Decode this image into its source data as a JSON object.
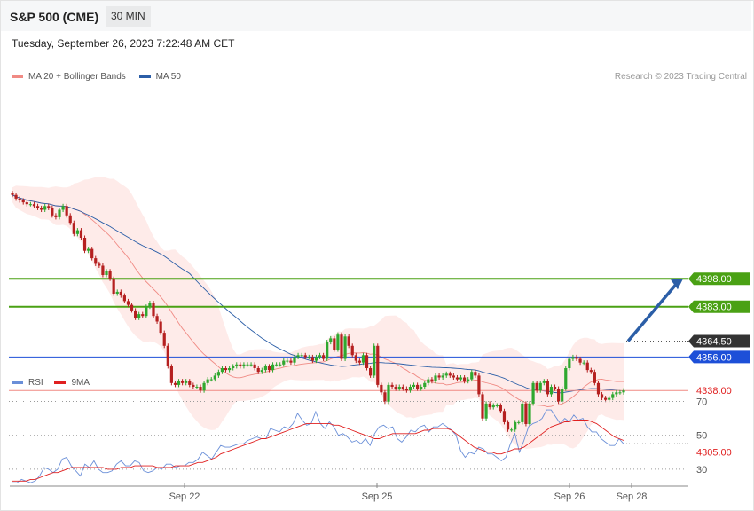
{
  "header": {
    "symbol": "S&P 500 (CME)",
    "timeframe": "30 MIN"
  },
  "timestamp": "Tuesday, September 26, 2023 7:22:48 AM CET",
  "legend": {
    "ma20": "MA 20 + Bollinger Bands",
    "ma20_color": "#f08a84",
    "ma50": "MA 50",
    "ma50_color": "#2b5ea7"
  },
  "rsi_legend": {
    "rsi": "RSI",
    "rsi_color": "#6a8fd8",
    "ma9": "9MA",
    "ma9_color": "#e02020"
  },
  "credit": "Research © 2023 Trading Central",
  "chart_data": [
    {
      "type": "candlestick",
      "title": "S&P 500 (CME) 30 MIN",
      "ylim": [
        4300,
        4500
      ],
      "x_ticks": [
        "Sep 22",
        "Sep 25",
        "Sep 26",
        "Sep 28"
      ],
      "colors": {
        "up": "#2fa82f",
        "down": "#b52020",
        "resistance": "#4aa114",
        "support": "#f08a84",
        "pivot": "#1d4fd8"
      },
      "closes": [
        4443,
        4441,
        4440,
        4439,
        4438,
        4438,
        4437,
        4436,
        4435,
        4437,
        4436,
        4432,
        4431,
        4435,
        4437,
        4432,
        4428,
        4422,
        4424,
        4420,
        4413,
        4414,
        4409,
        4406,
        4405,
        4400,
        4402,
        4398,
        4390,
        4391,
        4389,
        4386,
        4384,
        4381,
        4377,
        4379,
        4378,
        4383,
        4385,
        4378,
        4375,
        4369,
        4362,
        4351,
        4342,
        4341,
        4343,
        4342,
        4343,
        4341,
        4340,
        4340,
        4338,
        4342,
        4344,
        4344,
        4346,
        4348,
        4350,
        4349,
        4350,
        4351,
        4352,
        4351,
        4352,
        4352,
        4352,
        4350,
        4348,
        4349,
        4351,
        4349,
        4352,
        4352,
        4352,
        4354,
        4354,
        4353,
        4356,
        4357,
        4357,
        4356,
        4356,
        4354,
        4356,
        4357,
        4355,
        4364,
        4366,
        4360,
        4368,
        4355,
        4367,
        4362,
        4357,
        4354,
        4353,
        4357,
        4350,
        4346,
        4362,
        4341,
        4337,
        4332,
        4341,
        4340,
        4339,
        4340,
        4339,
        4338,
        4340,
        4341,
        4339,
        4340,
        4342,
        4344,
        4343,
        4346,
        4345,
        4346,
        4347,
        4346,
        4345,
        4344,
        4345,
        4343,
        4344,
        4348,
        4346,
        4336,
        4323,
        4331,
        4329,
        4330,
        4330,
        4327,
        4321,
        4317,
        4317,
        4321,
        4321,
        4331,
        4320,
        4331,
        4342,
        4338,
        4342,
        4343,
        4336,
        4340,
        4339,
        4332,
        4339,
        4350,
        4355,
        4356,
        4355,
        4353,
        4353,
        4349,
        4348,
        4342,
        4336,
        4334,
        4333,
        4334,
        4336,
        4337,
        4337,
        4338
      ],
      "levels": [
        {
          "value": 4398.0,
          "label": "4398.00",
          "kind": "resistance"
        },
        {
          "value": 4383.0,
          "label": "4383.00",
          "kind": "resistance"
        },
        {
          "value": 4364.5,
          "label": "4364.50",
          "kind": "last"
        },
        {
          "value": 4356.0,
          "label": "4356.00",
          "kind": "pivot"
        },
        {
          "value": 4338.0,
          "label": "4338.00",
          "kind": "support"
        },
        {
          "value": 4305.0,
          "label": "4305.00",
          "kind": "support"
        }
      ],
      "forecast_arrow": {
        "from": 4364.5,
        "to": 4398
      }
    },
    {
      "type": "line",
      "title": "RSI",
      "ylim": [
        20,
        75
      ],
      "y_ticks": [
        70,
        50,
        30
      ],
      "series": [
        {
          "name": "RSI",
          "values": [
            22,
            22,
            24,
            23,
            22,
            23,
            26,
            31,
            30,
            28,
            30,
            36,
            37,
            32,
            29,
            26,
            33,
            31,
            35,
            30,
            28,
            28,
            29,
            33,
            35,
            32,
            32,
            35,
            34,
            29,
            28,
            29,
            31,
            30,
            33,
            33,
            31,
            32,
            32,
            34,
            34,
            36,
            40,
            38,
            36,
            40,
            44,
            43,
            43,
            44,
            45,
            45,
            47,
            48,
            49,
            48,
            48,
            54,
            53,
            52,
            55,
            54,
            57,
            63,
            59,
            56,
            57,
            64,
            57,
            54,
            58,
            55,
            50,
            51,
            49,
            46,
            47,
            45,
            48,
            44,
            51,
            55,
            56,
            54,
            55,
            48,
            46,
            49,
            53,
            52,
            55,
            56,
            52,
            55,
            55,
            57,
            55,
            53,
            50,
            41,
            37,
            40,
            39,
            43,
            42,
            39,
            39,
            37,
            35,
            37,
            45,
            51,
            40,
            47,
            55,
            57,
            58,
            60,
            65,
            65,
            61,
            57,
            60,
            58,
            62,
            59,
            60,
            55,
            52,
            52,
            48,
            46,
            44,
            44,
            48,
            45
          ]
        },
        {
          "name": "9MA",
          "values": [
            23,
            23,
            23,
            23,
            24,
            24,
            25,
            26,
            27,
            28,
            28,
            29,
            30,
            31,
            31,
            31,
            31,
            31,
            31,
            31,
            31,
            30,
            30,
            30,
            31,
            31,
            31,
            32,
            32,
            32,
            32,
            32,
            31,
            31,
            31,
            31,
            32,
            32,
            32,
            32,
            33,
            34,
            34,
            35,
            36,
            37,
            39,
            40,
            41,
            42,
            43,
            44,
            45,
            46,
            47,
            48,
            48,
            49,
            50,
            51,
            52,
            53,
            54,
            55,
            56,
            57,
            57,
            57,
            57,
            57,
            57,
            56,
            56,
            55,
            54,
            53,
            52,
            51,
            50,
            49,
            48,
            48,
            49,
            50,
            51,
            51,
            51,
            51,
            51,
            51,
            52,
            53,
            53,
            54,
            54,
            54,
            54,
            53,
            51,
            49,
            47,
            45,
            43,
            42,
            41,
            40,
            40,
            39,
            39,
            40,
            41,
            42,
            42,
            43,
            45,
            47,
            49,
            51,
            53,
            55,
            56,
            57,
            58,
            58,
            59,
            59,
            59,
            59,
            58,
            57,
            55,
            53,
            51,
            49,
            48,
            47
          ]
        }
      ]
    }
  ]
}
